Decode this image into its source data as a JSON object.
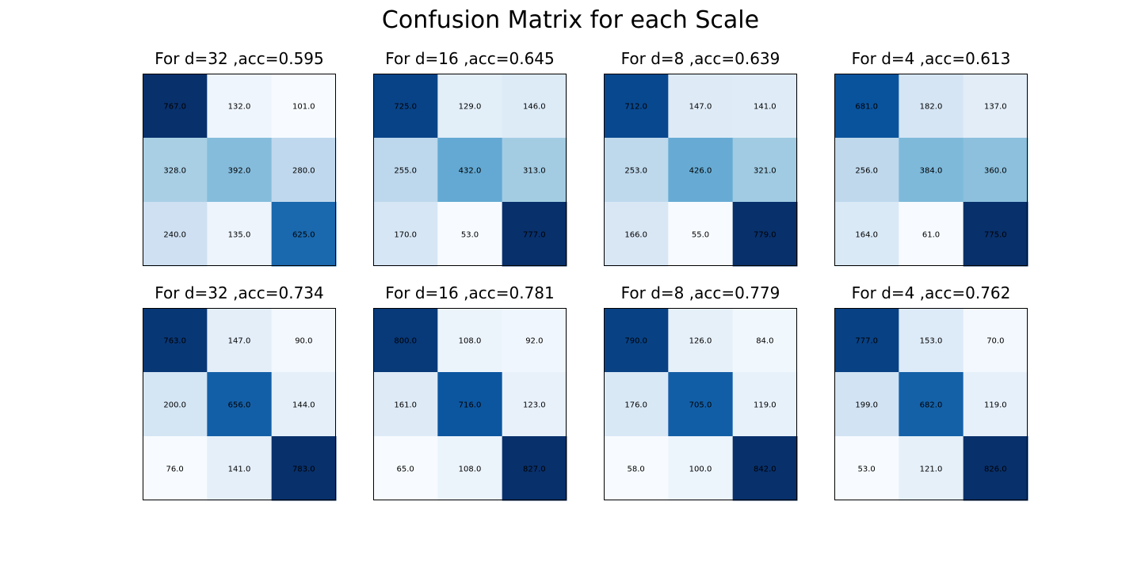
{
  "figure": {
    "title": "Confusion Matrix for each Scale"
  },
  "chart_data": [
    {
      "type": "heatmap",
      "title": "For d=32 ,acc=0.595",
      "matrix": [
        [
          767.0,
          132.0,
          101.0
        ],
        [
          328.0,
          392.0,
          280.0
        ],
        [
          240.0,
          135.0,
          625.0
        ]
      ]
    },
    {
      "type": "heatmap",
      "title": "For d=16 ,acc=0.645",
      "matrix": [
        [
          725.0,
          129.0,
          146.0
        ],
        [
          255.0,
          432.0,
          313.0
        ],
        [
          170.0,
          53.0,
          777.0
        ]
      ]
    },
    {
      "type": "heatmap",
      "title": "For d=8 ,acc=0.639",
      "matrix": [
        [
          712.0,
          147.0,
          141.0
        ],
        [
          253.0,
          426.0,
          321.0
        ],
        [
          166.0,
          55.0,
          779.0
        ]
      ]
    },
    {
      "type": "heatmap",
      "title": "For d=4 ,acc=0.613",
      "matrix": [
        [
          681.0,
          182.0,
          137.0
        ],
        [
          256.0,
          384.0,
          360.0
        ],
        [
          164.0,
          61.0,
          775.0
        ]
      ]
    },
    {
      "type": "heatmap",
      "title": "For d=32 ,acc=0.734",
      "matrix": [
        [
          763.0,
          147.0,
          90.0
        ],
        [
          200.0,
          656.0,
          144.0
        ],
        [
          76.0,
          141.0,
          783.0
        ]
      ]
    },
    {
      "type": "heatmap",
      "title": "For d=16 ,acc=0.781",
      "matrix": [
        [
          800.0,
          108.0,
          92.0
        ],
        [
          161.0,
          716.0,
          123.0
        ],
        [
          65.0,
          108.0,
          827.0
        ]
      ]
    },
    {
      "type": "heatmap",
      "title": "For d=8 ,acc=0.779",
      "matrix": [
        [
          790.0,
          126.0,
          84.0
        ],
        [
          176.0,
          705.0,
          119.0
        ],
        [
          58.0,
          100.0,
          842.0
        ]
      ]
    },
    {
      "type": "heatmap",
      "title": "For d=4 ,acc=0.762",
      "matrix": [
        [
          777.0,
          153.0,
          70.0
        ],
        [
          199.0,
          682.0,
          119.0
        ],
        [
          53.0,
          121.0,
          826.0
        ]
      ]
    }
  ],
  "colormap": {
    "name": "Blues",
    "stops": [
      "#f7fbff",
      "#deebf7",
      "#c6dbef",
      "#9ecae1",
      "#6baed6",
      "#4292c6",
      "#2171b5",
      "#08519c",
      "#08306b"
    ]
  }
}
